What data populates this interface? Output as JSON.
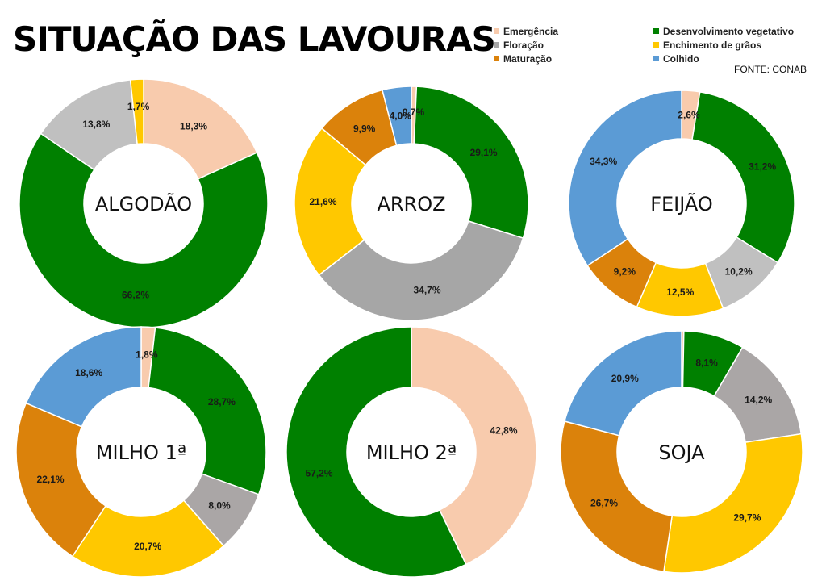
{
  "page": {
    "title": "SITUAÇÃO DAS LAVOURAS",
    "source": "FONTE: CONAB"
  },
  "legend": [
    {
      "label": "Emergência",
      "color": "#f8cbad"
    },
    {
      "label": "Floração",
      "color": "#a6a6a6"
    },
    {
      "label": "Maturação",
      "color": "#db820b"
    },
    {
      "label": "Desenvolvimento vegetativo",
      "color": "#008000"
    },
    {
      "label": "Enchimento de grãos",
      "color": "#ffc800"
    },
    {
      "label": "Colhido",
      "color": "#5b9bd5"
    }
  ],
  "chart_data": [
    {
      "type": "pie",
      "title": "ALGODÃO",
      "slices": [
        {
          "category": "Emergência",
          "value": 18.3,
          "label": "18,3%",
          "color": "#f8cbad"
        },
        {
          "category": "Desenvolvimento vegetativo",
          "value": 66.2,
          "label": "66,2%",
          "color": "#008000"
        },
        {
          "category": "Floração",
          "value": 13.8,
          "label": "13,8%",
          "color": "#c0c0c0"
        },
        {
          "category": "Enchimento de grãos",
          "value": 1.7,
          "label": "1,7%",
          "color": "#ffc800"
        }
      ]
    },
    {
      "type": "pie",
      "title": "ARROZ",
      "slices": [
        {
          "category": "Emergência",
          "value": 0.7,
          "label": "0,7%",
          "color": "#f8cbad"
        },
        {
          "category": "Desenvolvimento vegetativo",
          "value": 29.1,
          "label": "29,1%",
          "color": "#008000"
        },
        {
          "category": "Floração",
          "value": 34.7,
          "label": "34,7%",
          "color": "#a6a6a6"
        },
        {
          "category": "Enchimento de grãos",
          "value": 21.6,
          "label": "21,6%",
          "color": "#ffc800"
        },
        {
          "category": "Maturação",
          "value": 9.9,
          "label": "9,9%",
          "color": "#db820b"
        },
        {
          "category": "Colhido",
          "value": 4.0,
          "label": "4,0%",
          "color": "#5b9bd5"
        }
      ]
    },
    {
      "type": "pie",
      "title": "FEIJÃO",
      "slices": [
        {
          "category": "Emergência",
          "value": 2.6,
          "label": "2,6%",
          "color": "#f8cbad"
        },
        {
          "category": "Desenvolvimento vegetativo",
          "value": 31.2,
          "label": "31,2%",
          "color": "#008000"
        },
        {
          "category": "Floração",
          "value": 10.2,
          "label": "10,2%",
          "color": "#c0c0c0"
        },
        {
          "category": "Enchimento de grãos",
          "value": 12.5,
          "label": "12,5%",
          "color": "#ffc800"
        },
        {
          "category": "Maturação",
          "value": 9.2,
          "label": "9,2%",
          "color": "#db820b"
        },
        {
          "category": "Colhido",
          "value": 34.3,
          "label": "34,3%",
          "color": "#5b9bd5"
        }
      ]
    },
    {
      "type": "pie",
      "title": "MILHO 1ª",
      "slices": [
        {
          "category": "Emergência",
          "value": 1.8,
          "label": "1,8%",
          "color": "#f8cbad"
        },
        {
          "category": "Desenvolvimento vegetativo",
          "value": 28.7,
          "label": "28,7%",
          "color": "#008000"
        },
        {
          "category": "Floração",
          "value": 8.0,
          "label": "8,0%",
          "color": "#aaa6a6"
        },
        {
          "category": "Enchimento de grãos",
          "value": 20.7,
          "label": "20,7%",
          "color": "#ffc800"
        },
        {
          "category": "Maturação",
          "value": 22.1,
          "label": "22,1%",
          "color": "#db820b"
        },
        {
          "category": "Colhido",
          "value": 18.6,
          "label": "18,6%",
          "color": "#5b9bd5"
        }
      ]
    },
    {
      "type": "pie",
      "title": "MILHO 2ª",
      "slices": [
        {
          "category": "Emergência",
          "value": 42.8,
          "label": "42,8%",
          "color": "#f8cbad"
        },
        {
          "category": "Desenvolvimento vegetativo",
          "value": 57.2,
          "label": "57,2%",
          "color": "#008000"
        }
      ]
    },
    {
      "type": "pie",
      "title": "SOJA",
      "slices": [
        {
          "category": "Emergência",
          "value": 0.3,
          "label": "",
          "color": "#f8cbad"
        },
        {
          "category": "Desenvolvimento vegetativo",
          "value": 8.1,
          "label": "8,1%",
          "color": "#008000"
        },
        {
          "category": "Floração",
          "value": 14.2,
          "label": "14,2%",
          "color": "#aaa6a6"
        },
        {
          "category": "Enchimento de grãos",
          "value": 29.7,
          "label": "29,7%",
          "color": "#ffc800"
        },
        {
          "category": "Maturação",
          "value": 26.7,
          "label": "26,7%",
          "color": "#db820b"
        },
        {
          "category": "Colhido",
          "value": 20.9,
          "label": "20,9%",
          "color": "#5b9bd5"
        }
      ]
    }
  ]
}
